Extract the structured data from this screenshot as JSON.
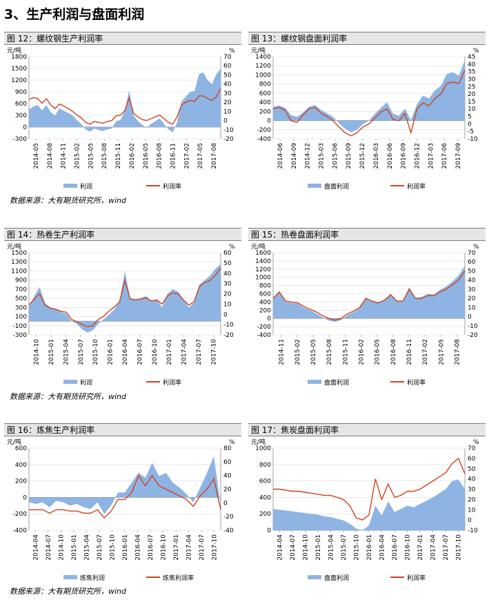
{
  "section_title": "3、生产利润与盘面利润",
  "source": "数据来源：大有期货研究所，wind",
  "colors": {
    "area": "#8eb4e3",
    "line": "#d0401b",
    "title_bg": "#e6e6e6"
  },
  "panels": [
    {
      "title": "图 12：螺纹钢生产利润率",
      "chart_data": {
        "type": "area",
        "left_unit": "元/吨",
        "right_unit": "%",
        "left_ticks": [
          -300,
          0,
          300,
          600,
          900,
          1200,
          1500,
          1800
        ],
        "right_ticks": [
          -20,
          -10,
          0,
          10,
          20,
          30,
          40,
          50,
          60,
          70
        ],
        "x_ticks": [
          "2014-05",
          "2014-08",
          "2014-11",
          "2015-02",
          "2015-05",
          "2015-08",
          "2015-11",
          "2016-02",
          "2016-05",
          "2016-08",
          "2016-11",
          "2017-02",
          "2017-05",
          "2017-08"
        ],
        "series": [
          {
            "name": "利润",
            "axis": "left",
            "values": [
              450,
              520,
              560,
              430,
              560,
              380,
              300,
              480,
              420,
              360,
              300,
              180,
              80,
              -60,
              -120,
              -40,
              -80,
              -100,
              -60,
              -40,
              150,
              180,
              420,
              940,
              300,
              150,
              60,
              -20,
              80,
              150,
              220,
              80,
              -60,
              -140,
              120,
              650,
              780,
              900,
              920,
              1350,
              1400,
              1200,
              1100,
              1350,
              1500
            ]
          },
          {
            "name": "利润率",
            "axis": "right",
            "values": [
              23,
              25,
              24,
              19,
              24,
              17,
              13,
              18,
              16,
              13,
              10,
              6,
              3,
              -2,
              -4,
              -1,
              -2,
              -3,
              -1,
              0,
              5,
              6,
              11,
              25,
              8,
              4,
              1,
              0,
              2,
              4,
              6,
              2,
              -2,
              -4,
              4,
              17,
              20,
              22,
              21,
              27,
              27,
              24,
              22,
              26,
              35
            ]
          }
        ]
      }
    },
    {
      "title": "图 13：螺纹钢盘面利润率",
      "chart_data": {
        "type": "area",
        "left_unit": "元/吨",
        "right_unit": "%",
        "left_ticks": [
          -400,
          -200,
          0,
          200,
          400,
          600,
          800,
          1000,
          1200,
          1400
        ],
        "right_ticks": [
          -10,
          -5,
          0,
          5,
          10,
          15,
          20,
          25,
          30,
          35,
          40,
          45
        ],
        "x_ticks": [
          "2014-06",
          "2014-09",
          "2014-12",
          "2015-03",
          "2015-06",
          "2015-09",
          "2015-12",
          "2016-03",
          "2016-06",
          "2016-09",
          "2016-12",
          "2017-03",
          "2017-06",
          "2017-09"
        ],
        "series": [
          {
            "name": "盘面利润",
            "axis": "left",
            "values": [
              300,
              330,
              280,
              120,
              80,
              180,
              300,
              340,
              230,
              160,
              80,
              -60,
              -180,
              -260,
              -200,
              -80,
              0,
              150,
              280,
              400,
              150,
              100,
              260,
              10,
              350,
              550,
              480,
              660,
              760,
              1020,
              1060,
              980,
              1330
            ]
          },
          {
            "name": "利润率",
            "axis": "right",
            "values": [
              10,
              11,
              9,
              2,
              1,
              6,
              10,
              11,
              7,
              5,
              2,
              -2,
              -6,
              -8,
              -6,
              -2,
              0,
              4,
              8,
              10,
              3,
              2,
              7,
              -6,
              10,
              14,
              12,
              17,
              20,
              27,
              28,
              27,
              36
            ]
          }
        ]
      }
    },
    {
      "title": "图 14：热卷生产利润率",
      "chart_data": {
        "type": "area",
        "left_unit": "元/吨",
        "right_unit": "%",
        "left_ticks": [
          -300,
          -100,
          100,
          300,
          500,
          700,
          900,
          1100,
          1300,
          1500
        ],
        "right_ticks": [
          -20,
          -10,
          0,
          10,
          20,
          30,
          40,
          50,
          60
        ],
        "x_ticks": [
          "2014-10",
          "2015-01",
          "2015-04",
          "2015-07",
          "2015-10",
          "2016-01",
          "2016-04",
          "2016-07",
          "2016-10",
          "2017-01",
          "2017-04",
          "2017-07",
          "2017-10"
        ],
        "series": [
          {
            "name": "利润",
            "axis": "left",
            "values": [
              300,
              550,
              750,
              400,
              300,
              260,
              200,
              160,
              0,
              -60,
              -180,
              -250,
              -200,
              -60,
              40,
              140,
              250,
              420,
              1100,
              500,
              480,
              500,
              550,
              430,
              480,
              300,
              600,
              700,
              650,
              480,
              300,
              400,
              800,
              900,
              1000,
              1150,
              1250
            ]
          },
          {
            "name": "利润率",
            "axis": "right",
            "values": [
              9,
              15,
              20,
              9,
              6,
              5,
              3,
              2,
              -5,
              -7,
              -10,
              -12,
              -11,
              -5,
              -2,
              3,
              7,
              12,
              33,
              15,
              14,
              15,
              16,
              13,
              14,
              10,
              18,
              21,
              20,
              14,
              9,
              12,
              27,
              31,
              33,
              38,
              45
            ]
          }
        ]
      }
    },
    {
      "title": "图 15：热卷盘面利润率",
      "chart_data": {
        "type": "area",
        "left_unit": "元/吨",
        "right_unit": "%",
        "left_ticks": [
          -400,
          -200,
          0,
          200,
          400,
          600,
          800,
          1000,
          1200,
          1400,
          1600
        ],
        "right_ticks": [
          -20,
          -10,
          0,
          10,
          20,
          30,
          40,
          50,
          60,
          70
        ],
        "x_ticks": [
          "2014-11",
          "2015-02",
          "2015-05",
          "2015-08",
          "2015-11",
          "2016-02",
          "2016-05",
          "2016-08",
          "2016-11",
          "2017-02",
          "2017-05",
          "2017-08"
        ],
        "series": [
          {
            "name": "盘面利润",
            "axis": "left",
            "values": [
              480,
              650,
              400,
              380,
              360,
              260,
              200,
              120,
              30,
              -50,
              -80,
              -40,
              80,
              150,
              250,
              500,
              420,
              380,
              450,
              600,
              420,
              430,
              760,
              500,
              520,
              600,
              580,
              700,
              780,
              900,
              1050,
              1280
            ]
          },
          {
            "name": "利润率",
            "axis": "right",
            "values": [
              20,
              27,
              17,
              16,
              15,
              11,
              8,
              5,
              1,
              -2,
              -4,
              -2,
              3,
              6,
              10,
              20,
              17,
              15,
              18,
              24,
              17,
              17,
              30,
              20,
              20,
              23,
              23,
              27,
              30,
              35,
              40,
              50
            ]
          }
        ]
      }
    },
    {
      "title": "图 16：炼焦生产利润率",
      "chart_data": {
        "type": "area",
        "left_unit": "元/吨",
        "right_unit": "%",
        "left_ticks": [
          -400,
          -200,
          0,
          200,
          400,
          600
        ],
        "right_ticks": [
          -40,
          -20,
          0,
          20,
          40,
          60,
          80
        ],
        "x_ticks": [
          "2014-04",
          "2014-07",
          "2014-10",
          "2015-01",
          "2015-04",
          "2015-07",
          "2015-10",
          "2016-01",
          "2016-04",
          "2016-07",
          "2016-10",
          "2017-01",
          "2017-04",
          "2017-07",
          "2017-10"
        ],
        "series": [
          {
            "name": "炼焦利润",
            "axis": "left",
            "values": [
              -60,
              -80,
              -60,
              -120,
              -40,
              -60,
              -100,
              -80,
              -120,
              -140,
              -60,
              -200,
              -100,
              60,
              60,
              180,
              300,
              240,
              420,
              260,
              300,
              180,
              120,
              40,
              -60,
              120,
              300,
              500,
              -100
            ]
          },
          {
            "name": "炼焦利润率",
            "axis": "right",
            "values": [
              -10,
              -10,
              -10,
              -15,
              -10,
              -10,
              -12,
              -12,
              -15,
              -15,
              -10,
              -22,
              -12,
              5,
              5,
              15,
              40,
              25,
              40,
              25,
              20,
              15,
              10,
              5,
              -5,
              10,
              20,
              35,
              -10
            ]
          }
        ]
      }
    },
    {
      "title": "图 17：焦炭盘面利润率",
      "chart_data": {
        "type": "area",
        "left_unit": "元/吨",
        "right_unit": "%",
        "left_ticks": [
          0,
          200,
          400,
          600,
          800,
          1000
        ],
        "right_ticks": [
          -10,
          0,
          10,
          20,
          30,
          40,
          50,
          60,
          70
        ],
        "x_ticks": [
          "2014-04",
          "2014-07",
          "2014-10",
          "2015-01",
          "2015-04",
          "2015-07",
          "2015-10",
          "2016-01",
          "2016-04",
          "2016-07",
          "2016-10",
          "2017-01",
          "2017-04",
          "2017-07",
          "2017-10"
        ],
        "series": [
          {
            "name": "盘面利润",
            "axis": "left",
            "values": [
              260,
              250,
              240,
              230,
              220,
              210,
              200,
              190,
              170,
              160,
              140,
              120,
              80,
              20,
              0,
              60,
              300,
              180,
              350,
              220,
              260,
              300,
              280,
              320,
              360,
              400,
              450,
              500,
              600,
              620,
              500
            ]
          },
          {
            "name": "利润率",
            "axis": "right",
            "values": [
              30,
              30,
              29,
              28,
              28,
              27,
              26,
              25,
              24,
              24,
              22,
              20,
              14,
              2,
              0,
              5,
              40,
              20,
              35,
              22,
              24,
              28,
              28,
              30,
              34,
              38,
              42,
              46,
              55,
              60,
              45
            ]
          }
        ]
      }
    }
  ]
}
